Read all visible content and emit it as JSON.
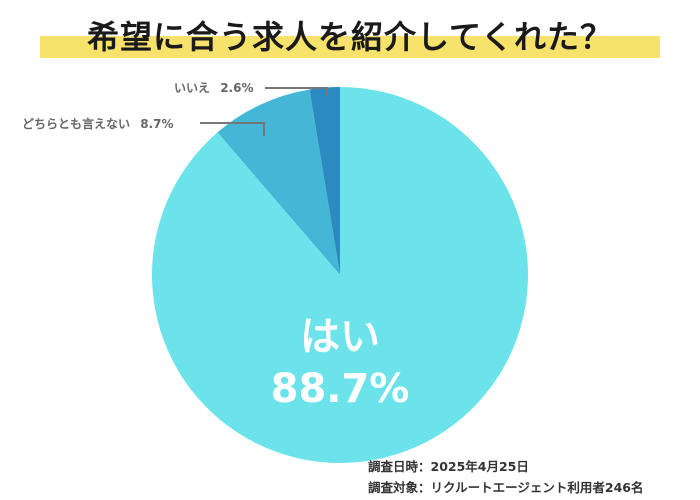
{
  "title": "希望に合う求人を紹介してくれた？",
  "chart_data": {
    "type": "pie",
    "slices": [
      {
        "label": "はい",
        "value": 88.7,
        "value_label": "88.7%",
        "color": "#6ce3ea"
      },
      {
        "label": "どちらとも言えない",
        "value": 8.7,
        "value_label": "8.7%",
        "color": "#45b7d6"
      },
      {
        "label": "いいえ",
        "value": 2.6,
        "value_label": "2.6%",
        "color": "#2b8ac0"
      }
    ],
    "start": "top",
    "direction": "clockwise",
    "legend": "none"
  },
  "notes": {
    "survey_date": "調査日時：2025年4月25日",
    "survey_target": "調査対象：リクルートエージェント利用者246名"
  }
}
